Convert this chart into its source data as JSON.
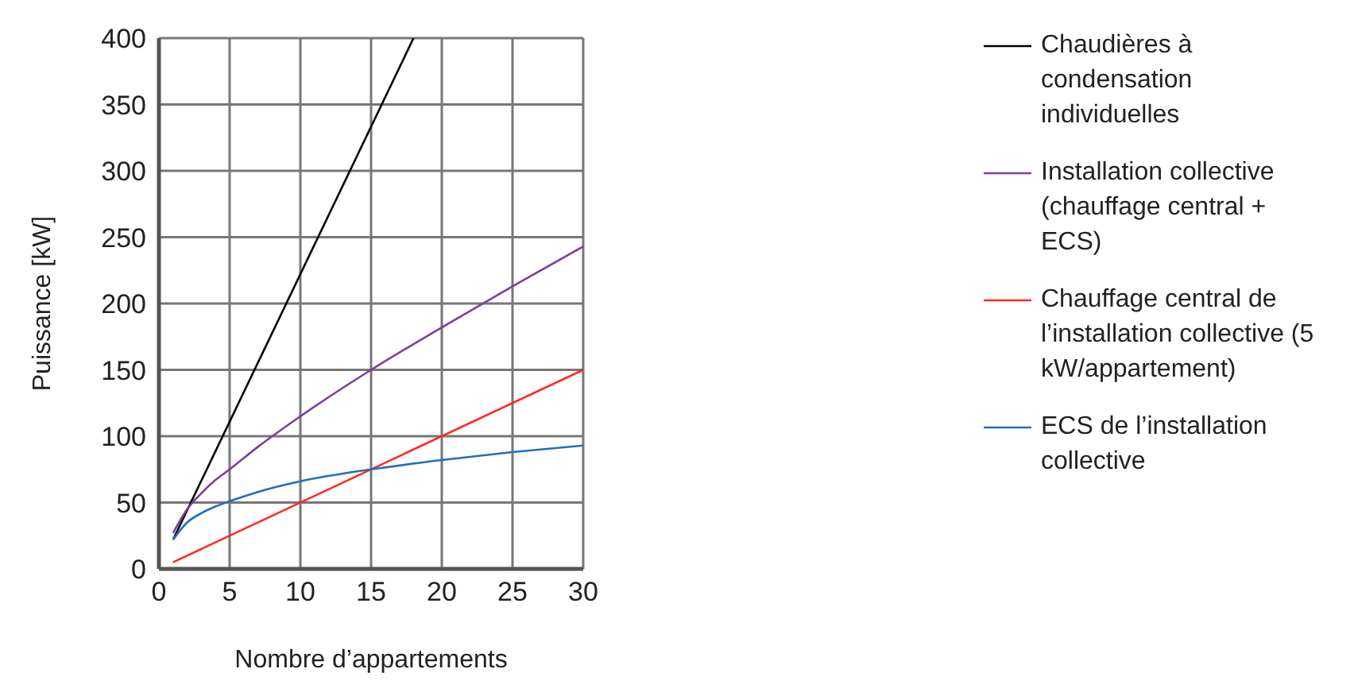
{
  "chart_data": {
    "type": "line",
    "xlabel": "Nombre d’appartements",
    "ylabel": "Puissance [kW]",
    "xlim": [
      0,
      30
    ],
    "xticks": [
      0,
      5,
      10,
      15,
      20,
      25,
      30
    ],
    "ylim": [
      0,
      400
    ],
    "yticks": [
      0,
      50,
      100,
      150,
      200,
      250,
      300,
      350,
      400
    ],
    "grid": true,
    "legend": "right",
    "marker": "none",
    "line_style": "solid",
    "series": [
      {
        "name": "Chaudières à condensation individuelles",
        "color": "#000000",
        "x": [
          1,
          18
        ],
        "values": [
          22,
          400
        ]
      },
      {
        "name": "Installation collective (chauffage central + ECS)",
        "color": "#7b3f9e",
        "x": [
          1,
          2,
          3,
          4,
          5,
          7,
          10,
          15,
          20,
          25,
          30
        ],
        "values": [
          27,
          45,
          57,
          67,
          75,
          92,
          115,
          150,
          182,
          213,
          243
        ]
      },
      {
        "name": "Chauffage central de l’installation collective (5 kW/appartement)",
        "color": "#ff2a1a",
        "x": [
          1,
          30
        ],
        "values": [
          5,
          150
        ]
      },
      {
        "name": "ECS de l’installation collective",
        "color": "#1f6fbf",
        "x": [
          1,
          2,
          3,
          4,
          5,
          7,
          10,
          15,
          20,
          25,
          30
        ],
        "values": [
          22,
          35,
          42,
          47,
          51,
          58,
          66,
          75,
          82,
          88,
          93
        ]
      }
    ]
  }
}
